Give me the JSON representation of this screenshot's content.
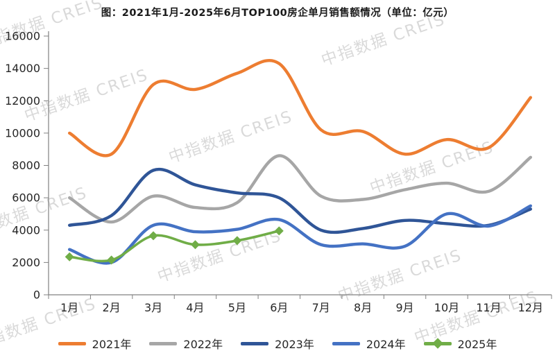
{
  "title": "图：2021年1月-2025年6月TOP100房企单月销售额情况（单位：亿元）",
  "watermark": "中指数据 CREIS",
  "chart_data": {
    "type": "line",
    "title": "图：2021年1月-2025年6月TOP100房企单月销售额情况",
    "unit": "亿元",
    "categories": [
      "1月",
      "2月",
      "3月",
      "4月",
      "5月",
      "6月",
      "7月",
      "8月",
      "9月",
      "10月",
      "11月",
      "12月"
    ],
    "y_axis": {
      "min": 0,
      "max": 16000,
      "step": 2000,
      "tick_labels": [
        "0",
        "2000",
        "4000",
        "6000",
        "8000",
        "10000",
        "12000",
        "14000",
        "16000"
      ]
    },
    "grid": false,
    "legend_position": "bottom",
    "series": [
      {
        "name": "2021年",
        "color": "#ED7D31",
        "marker": "none",
        "values": [
          10000,
          8700,
          13000,
          12700,
          13700,
          14300,
          10200,
          10100,
          8700,
          9600,
          9100,
          12200
        ]
      },
      {
        "name": "2022年",
        "color": "#A6A6A6",
        "marker": "none",
        "values": [
          6000,
          4500,
          6100,
          5400,
          5700,
          8600,
          6100,
          5900,
          6500,
          6900,
          6400,
          8500
        ]
      },
      {
        "name": "2023年",
        "color": "#2F5597",
        "marker": "none",
        "values": [
          4300,
          4900,
          7700,
          6800,
          6300,
          6000,
          4000,
          4100,
          4600,
          4400,
          4300,
          5300
        ]
      },
      {
        "name": "2024年",
        "color": "#4472C4",
        "marker": "none",
        "values": [
          2800,
          2000,
          4300,
          3900,
          4050,
          4650,
          3100,
          3150,
          3000,
          5000,
          4250,
          5500
        ]
      },
      {
        "name": "2025年",
        "color": "#70AD47",
        "marker": "diamond",
        "values": [
          2350,
          2150,
          3650,
          3100,
          3350,
          3950
        ]
      }
    ]
  }
}
